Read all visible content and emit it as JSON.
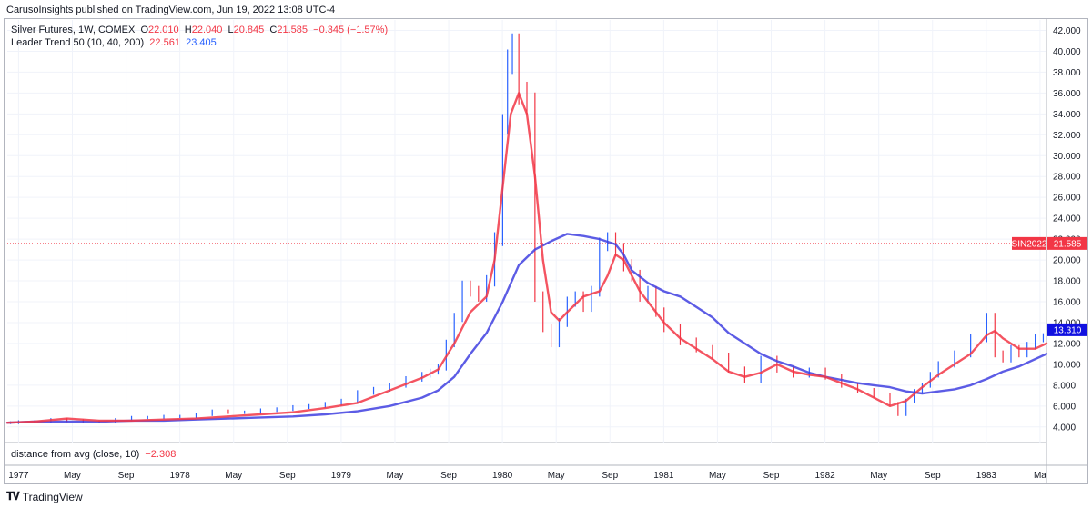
{
  "header": {
    "published": "CarusoInsights published on TradingView.com, Jun 19, 2022 13:08 UTC-4"
  },
  "legend": {
    "symbol": "Silver Futures, 1W, COMEX",
    "o_label": "O",
    "o": "22.010",
    "h_label": "H",
    "h": "22.040",
    "l_label": "L",
    "l": "20.845",
    "c_label": "C",
    "c": "21.585",
    "change": "−0.345 (−1.57%)",
    "indicator_name": "Leader Trend 50 (10, 40, 200)",
    "indicator_v1": "22.561",
    "indicator_v2": "23.405"
  },
  "sub_indicator": {
    "label": "distance from avg (close, 10)",
    "value": "−2.308"
  },
  "footer": {
    "brand": "TradingView"
  },
  "colors": {
    "bars": "#2962ff",
    "fast_ma": "#f23645",
    "slow_ma": "#3f3fe0",
    "price_line": "#f23645"
  },
  "chart_data": {
    "type": "line",
    "y_axis": {
      "ticks": [
        "4.000",
        "6.000",
        "8.000",
        "10.000",
        "12.000",
        "14.000",
        "16.000",
        "18.000",
        "20.000",
        "22.000",
        "24.000",
        "26.000",
        "28.000",
        "30.000",
        "32.000",
        "34.000",
        "36.000",
        "38.000",
        "40.000",
        "42.000"
      ],
      "range": [
        2.5,
        43
      ]
    },
    "x_axis": {
      "ticks": [
        "1977",
        "May",
        "Sep",
        "1978",
        "May",
        "Sep",
        "1979",
        "May",
        "Sep",
        "1980",
        "May",
        "Sep",
        "1981",
        "May",
        "Sep",
        "1982",
        "May",
        "Sep",
        "1983",
        "Ma"
      ],
      "range": [
        1976.93,
        1983.37
      ]
    },
    "current_price": {
      "symbol": "SIN2022",
      "value": 21.585,
      "label": "21.585"
    },
    "slow_ma_tag": {
      "value": 13.31,
      "label": "13.310"
    },
    "series": [
      {
        "kind": "ohlc_close",
        "x": [
          1976.95,
          1977.0,
          1977.1,
          1977.2,
          1977.3,
          1977.4,
          1977.5,
          1977.6,
          1977.7,
          1977.8,
          1977.9,
          1978.0,
          1978.1,
          1978.2,
          1978.3,
          1978.4,
          1978.5,
          1978.6,
          1978.7,
          1978.8,
          1978.9,
          1979.0,
          1979.1,
          1979.2,
          1979.3,
          1979.4,
          1979.5,
          1979.55,
          1979.6,
          1979.65,
          1979.7,
          1979.75,
          1979.8,
          1979.85,
          1979.9,
          1979.95,
          1980.0,
          1980.03,
          1980.06,
          1980.1,
          1980.15,
          1980.2,
          1980.25,
          1980.3,
          1980.35,
          1980.4,
          1980.45,
          1980.5,
          1980.55,
          1980.6,
          1980.65,
          1980.7,
          1980.75,
          1980.8,
          1980.85,
          1980.9,
          1980.95,
          1981.0,
          1981.1,
          1981.2,
          1981.3,
          1981.4,
          1981.5,
          1981.6,
          1981.7,
          1981.8,
          1981.9,
          1982.0,
          1982.1,
          1982.2,
          1982.3,
          1982.4,
          1982.45,
          1982.5,
          1982.55,
          1982.6,
          1982.65,
          1982.7,
          1982.8,
          1982.9,
          1983.0,
          1983.05,
          1983.1,
          1983.15,
          1983.2,
          1983.25,
          1983.3,
          1983.35
        ],
        "values": [
          4.4,
          4.5,
          4.5,
          4.7,
          4.6,
          4.5,
          4.5,
          4.7,
          4.9,
          4.9,
          5.0,
          5.0,
          5.2,
          5.5,
          5.4,
          5.4,
          5.6,
          5.7,
          5.9,
          6.0,
          6.2,
          6.5,
          7.3,
          7.6,
          8.0,
          8.6,
          9.0,
          9.3,
          9.7,
          12.0,
          14.5,
          17.5,
          17.0,
          16.5,
          18.0,
          22.0,
          33.0,
          39.0,
          40.5,
          36.0,
          35.0,
          16.5,
          13.5,
          12.0,
          14.0,
          16.0,
          16.5,
          15.5,
          17.0,
          21.5,
          22.0,
          21.0,
          19.5,
          18.5,
          16.5,
          17.0,
          15.0,
          13.5,
          12.2,
          11.5,
          10.8,
          9.5,
          8.5,
          10.5,
          9.5,
          9.0,
          9.4,
          8.8,
          8.0,
          7.5,
          7.0,
          6.2,
          5.2,
          6.5,
          7.4,
          8.0,
          9.0,
          10.0,
          11.0,
          12.5,
          14.5,
          11.0,
          10.5,
          11.5,
          11.0,
          11.8,
          12.5,
          12.6
        ]
      },
      {
        "kind": "fast_ma",
        "x": [
          1976.93,
          1977.1,
          1977.3,
          1977.5,
          1977.7,
          1977.9,
          1978.1,
          1978.3,
          1978.5,
          1978.7,
          1978.9,
          1979.1,
          1979.3,
          1979.5,
          1979.6,
          1979.7,
          1979.8,
          1979.9,
          1979.95,
          1980.0,
          1980.05,
          1980.1,
          1980.15,
          1980.2,
          1980.25,
          1980.3,
          1980.35,
          1980.4,
          1980.5,
          1980.6,
          1980.65,
          1980.7,
          1980.75,
          1980.8,
          1980.85,
          1980.9,
          1980.95,
          1981.0,
          1981.1,
          1981.2,
          1981.3,
          1981.4,
          1981.5,
          1981.6,
          1981.7,
          1981.8,
          1981.9,
          1982.0,
          1982.1,
          1982.2,
          1982.3,
          1982.4,
          1982.5,
          1982.6,
          1982.7,
          1982.8,
          1982.9,
          1983.0,
          1983.05,
          1983.1,
          1983.2,
          1983.3,
          1983.37
        ],
        "values": [
          4.4,
          4.5,
          4.8,
          4.6,
          4.6,
          4.7,
          4.8,
          5.0,
          5.2,
          5.4,
          5.8,
          6.3,
          7.5,
          8.7,
          9.5,
          12.0,
          15.0,
          16.5,
          20.0,
          27.0,
          34.0,
          36.0,
          34.0,
          28.0,
          20.0,
          15.0,
          14.2,
          15.0,
          16.5,
          17.0,
          18.5,
          20.5,
          20.0,
          18.5,
          17.0,
          16.0,
          15.0,
          14.0,
          12.5,
          11.5,
          10.5,
          9.3,
          8.8,
          9.2,
          10.0,
          9.3,
          9.0,
          8.8,
          8.2,
          7.6,
          6.8,
          6.0,
          6.5,
          7.8,
          9.0,
          10.0,
          11.0,
          12.8,
          13.2,
          12.5,
          11.5,
          11.5,
          12.0
        ]
      },
      {
        "kind": "slow_ma",
        "x": [
          1976.93,
          1977.1,
          1977.3,
          1977.5,
          1977.7,
          1977.9,
          1978.1,
          1978.3,
          1978.5,
          1978.7,
          1978.9,
          1979.1,
          1979.3,
          1979.5,
          1979.6,
          1979.7,
          1979.8,
          1979.9,
          1980.0,
          1980.1,
          1980.2,
          1980.3,
          1980.4,
          1980.5,
          1980.6,
          1980.7,
          1980.75,
          1980.8,
          1980.9,
          1981.0,
          1981.1,
          1981.2,
          1981.3,
          1981.4,
          1981.5,
          1981.6,
          1981.7,
          1981.8,
          1981.9,
          1982.0,
          1982.1,
          1982.2,
          1982.3,
          1982.4,
          1982.5,
          1982.6,
          1982.7,
          1982.8,
          1982.9,
          1983.0,
          1983.1,
          1983.2,
          1983.3,
          1983.37
        ],
        "values": [
          4.4,
          4.5,
          4.5,
          4.5,
          4.6,
          4.6,
          4.7,
          4.8,
          4.9,
          5.0,
          5.2,
          5.5,
          6.0,
          6.8,
          7.5,
          8.8,
          11.0,
          13.0,
          16.0,
          19.5,
          21.0,
          21.8,
          22.5,
          22.3,
          22.0,
          21.5,
          20.5,
          19.0,
          17.8,
          17.0,
          16.5,
          15.5,
          14.5,
          13.0,
          12.0,
          11.0,
          10.3,
          9.8,
          9.2,
          8.8,
          8.5,
          8.2,
          8.0,
          7.8,
          7.4,
          7.2,
          7.4,
          7.6,
          8.0,
          8.6,
          9.3,
          9.8,
          10.5,
          11.0
        ]
      }
    ],
    "grid": true
  }
}
